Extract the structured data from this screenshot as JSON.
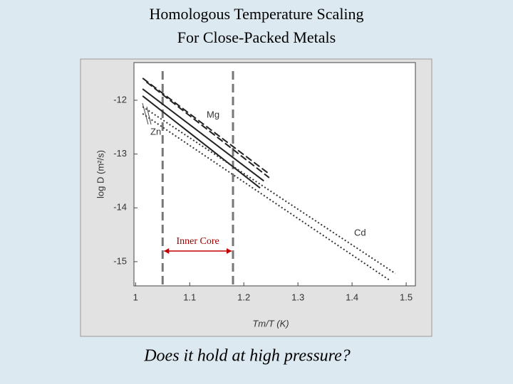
{
  "chart_data": {
    "type": "line",
    "title_lines": [
      "Homologous Temperature Scaling",
      "For Close-Packed Metals"
    ],
    "x_label": "Tm/T (K)",
    "y_label": "log D (m²/s)",
    "caption": "Does it hold at high pressure?",
    "annotation": "Inner Core",
    "vlines": [
      1.05,
      1.18
    ],
    "xlim": [
      0.997,
      1.517
    ],
    "ylim": [
      -15.45,
      -11.3
    ],
    "xticks": [
      1,
      1.1,
      1.2,
      1.3,
      1.4,
      1.5
    ],
    "yticks": [
      -12,
      -13,
      -14,
      -15
    ],
    "series": [
      {
        "name": "Mg",
        "color": "#222222",
        "dash": "dashed",
        "x": [
          1.013,
          1.247
        ],
        "values": [
          -11.59,
          -13.37
        ]
      },
      {
        "color": "#222222",
        "dash": "dashed",
        "x": [
          1.02,
          1.247
        ],
        "values": [
          -11.66,
          -13.44
        ]
      },
      {
        "name": "Zn",
        "color": "#222222",
        "dash": "solid",
        "x": [
          1.013,
          1.237
        ],
        "values": [
          -11.79,
          -13.5
        ]
      },
      {
        "color": "#222222",
        "dash": "solid",
        "x": [
          1.013,
          1.23
        ],
        "values": [
          -11.92,
          -13.63
        ]
      },
      {
        "name": "Cd",
        "color": "#333333",
        "dash": "dotted",
        "x": [
          1.013,
          1.48
        ],
        "values": [
          -12.12,
          -15.22
        ]
      },
      {
        "color": "#333333",
        "dash": "dotted",
        "x": [
          1.013,
          1.47
        ],
        "values": [
          -12.25,
          -15.35
        ]
      }
    ]
  }
}
